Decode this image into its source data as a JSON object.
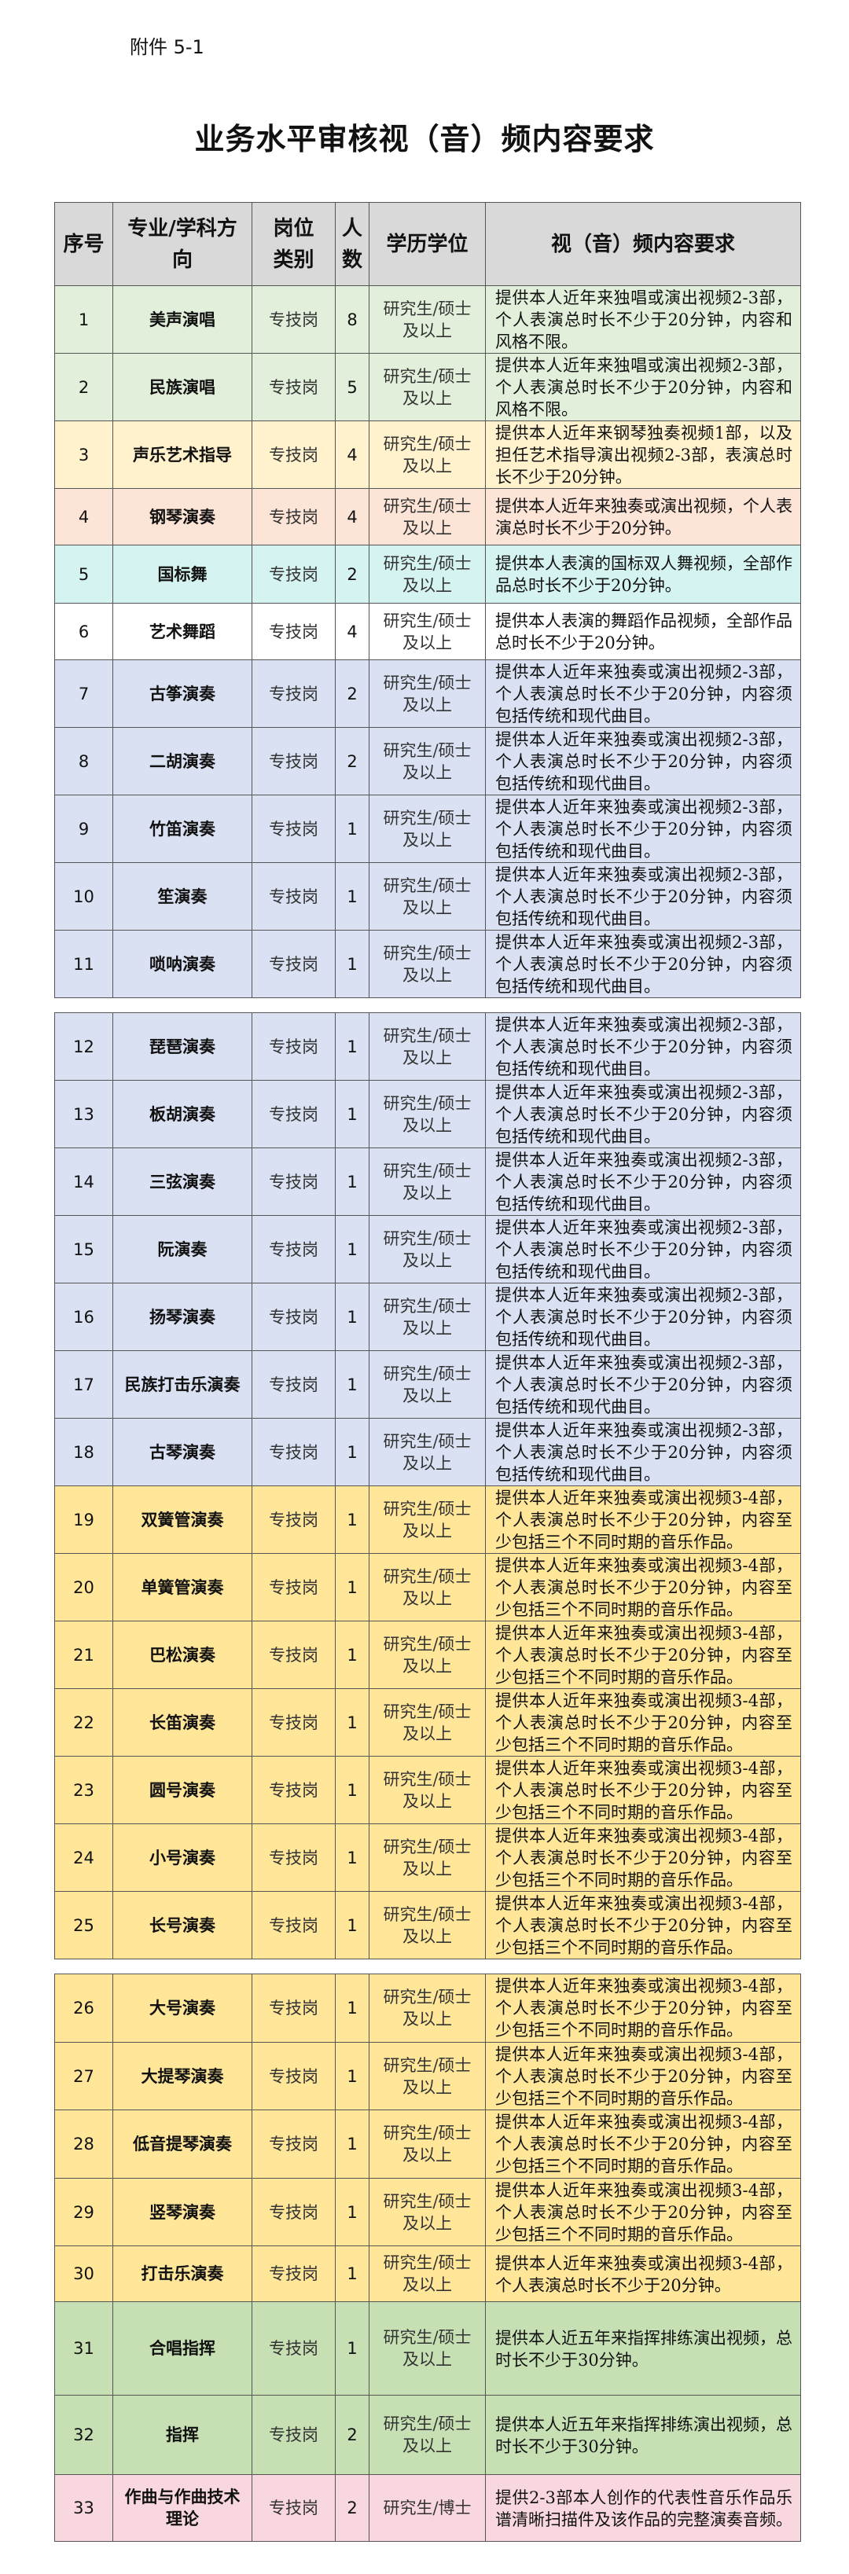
{
  "attachment_label": "附件 5-1",
  "title": "业务水平审核视（音）频内容要求",
  "colors": {
    "header": "#d9d9d9",
    "vocal_green": "#e2efda",
    "accompany_yellow": "#fff2cc",
    "piano_peach": "#fce4d6",
    "dance_cyan": "#d4f3f1",
    "white": "#ffffff",
    "folk_blue": "#d9e1f2",
    "western_gold": "#ffe699",
    "conduct_green": "#c6e0b4",
    "composition_pink": "#f8d7de"
  },
  "table": {
    "headers": [
      "序号",
      "专业/学科方向",
      "岗位类别",
      "人数",
      "学历学位",
      "视（音）频内容要求"
    ],
    "rows": [
      {
        "no": "1",
        "major": "美声演唱",
        "category": "专技岗",
        "count": "8",
        "degree": "研究生/硕士及以上",
        "content": "提供本人近年来独唱或演出视频2-3部，个人表演总时长不少于20分钟，内容和风格不限。",
        "color": "#e2efda"
      },
      {
        "no": "2",
        "major": "民族演唱",
        "category": "专技岗",
        "count": "5",
        "degree": "研究生/硕士及以上",
        "content": "提供本人近年来独唱或演出视频2-3部，个人表演总时长不少于20分钟，内容和风格不限。",
        "color": "#e2efda"
      },
      {
        "no": "3",
        "major": "声乐艺术指导",
        "category": "专技岗",
        "count": "4",
        "degree": "研究生/硕士及以上",
        "content": "提供本人近年来钢琴独奏视频1部，以及担任艺术指导演出视频2-3部，表演总时长不少于20分钟。",
        "color": "#fff2cc"
      },
      {
        "no": "4",
        "major": "钢琴演奏",
        "category": "专技岗",
        "count": "4",
        "degree": "研究生/硕士及以上",
        "content": "提供本人近年来独奏或演出视频，个人表演总时长不少于20分钟。",
        "color": "#fce4d6"
      },
      {
        "no": "5",
        "major": "国标舞",
        "category": "专技岗",
        "count": "2",
        "degree": "研究生/硕士及以上",
        "content": "提供本人表演的国标双人舞视频，全部作品总时长不少于20分钟。",
        "color": "#d4f3f1"
      },
      {
        "no": "6",
        "major": "艺术舞蹈",
        "category": "专技岗",
        "count": "4",
        "degree": "研究生/硕士及以上",
        "content": "提供本人表演的舞蹈作品视频，全部作品总时长不少于20分钟。",
        "color": "#ffffff"
      },
      {
        "no": "7",
        "major": "古筝演奏",
        "category": "专技岗",
        "count": "2",
        "degree": "研究生/硕士及以上",
        "content": "提供本人近年来独奏或演出视频2-3部，个人表演总时长不少于20分钟，内容须包括传统和现代曲目。",
        "color": "#d9e1f2"
      },
      {
        "no": "8",
        "major": "二胡演奏",
        "category": "专技岗",
        "count": "2",
        "degree": "研究生/硕士及以上",
        "content": "提供本人近年来独奏或演出视频2-3部，个人表演总时长不少于20分钟，内容须包括传统和现代曲目。",
        "color": "#d9e1f2"
      },
      {
        "no": "9",
        "major": "竹笛演奏",
        "category": "专技岗",
        "count": "1",
        "degree": "研究生/硕士及以上",
        "content": "提供本人近年来独奏或演出视频2-3部，个人表演总时长不少于20分钟，内容须包括传统和现代曲目。",
        "color": "#d9e1f2"
      },
      {
        "no": "10",
        "major": "笙演奏",
        "category": "专技岗",
        "count": "1",
        "degree": "研究生/硕士及以上",
        "content": "提供本人近年来独奏或演出视频2-3部，个人表演总时长不少于20分钟，内容须包括传统和现代曲目。",
        "color": "#d9e1f2"
      },
      {
        "no": "11",
        "major": "唢呐演奏",
        "category": "专技岗",
        "count": "1",
        "degree": "研究生/硕士及以上",
        "content": "提供本人近年来独奏或演出视频2-3部，个人表演总时长不少于20分钟，内容须包括传统和现代曲目。",
        "color": "#d9e1f2"
      },
      {
        "no": "12",
        "major": "琵琶演奏",
        "category": "专技岗",
        "count": "1",
        "degree": "研究生/硕士及以上",
        "content": "提供本人近年来独奏或演出视频2-3部，个人表演总时长不少于20分钟，内容须包括传统和现代曲目。",
        "color": "#d9e1f2"
      },
      {
        "no": "13",
        "major": "板胡演奏",
        "category": "专技岗",
        "count": "1",
        "degree": "研究生/硕士及以上",
        "content": "提供本人近年来独奏或演出视频2-3部，个人表演总时长不少于20分钟，内容须包括传统和现代曲目。",
        "color": "#d9e1f2"
      },
      {
        "no": "14",
        "major": "三弦演奏",
        "category": "专技岗",
        "count": "1",
        "degree": "研究生/硕士及以上",
        "content": "提供本人近年来独奏或演出视频2-3部，个人表演总时长不少于20分钟，内容须包括传统和现代曲目。",
        "color": "#d9e1f2"
      },
      {
        "no": "15",
        "major": "阮演奏",
        "category": "专技岗",
        "count": "1",
        "degree": "研究生/硕士及以上",
        "content": "提供本人近年来独奏或演出视频2-3部，个人表演总时长不少于20分钟，内容须包括传统和现代曲目。",
        "color": "#d9e1f2"
      },
      {
        "no": "16",
        "major": "扬琴演奏",
        "category": "专技岗",
        "count": "1",
        "degree": "研究生/硕士及以上",
        "content": "提供本人近年来独奏或演出视频2-3部，个人表演总时长不少于20分钟，内容须包括传统和现代曲目。",
        "color": "#d9e1f2"
      },
      {
        "no": "17",
        "major": "民族打击乐演奏",
        "category": "专技岗",
        "count": "1",
        "degree": "研究生/硕士及以上",
        "content": "提供本人近年来独奏或演出视频2-3部，个人表演总时长不少于20分钟，内容须包括传统和现代曲目。",
        "color": "#d9e1f2"
      },
      {
        "no": "18",
        "major": "古琴演奏",
        "category": "专技岗",
        "count": "1",
        "degree": "研究生/硕士及以上",
        "content": "提供本人近年来独奏或演出视频2-3部，个人表演总时长不少于20分钟，内容须包括传统和现代曲目。",
        "color": "#d9e1f2"
      },
      {
        "no": "19",
        "major": "双簧管演奏",
        "category": "专技岗",
        "count": "1",
        "degree": "研究生/硕士及以上",
        "content": "提供本人近年来独奏或演出视频3-4部，个人表演总时长不少于20分钟，内容至少包括三个不同时期的音乐作品。",
        "color": "#ffe699"
      },
      {
        "no": "20",
        "major": "单簧管演奏",
        "category": "专技岗",
        "count": "1",
        "degree": "研究生/硕士及以上",
        "content": "提供本人近年来独奏或演出视频3-4部，个人表演总时长不少于20分钟，内容至少包括三个不同时期的音乐作品。",
        "color": "#ffe699"
      },
      {
        "no": "21",
        "major": "巴松演奏",
        "category": "专技岗",
        "count": "1",
        "degree": "研究生/硕士及以上",
        "content": "提供本人近年来独奏或演出视频3-4部，个人表演总时长不少于20分钟，内容至少包括三个不同时期的音乐作品。",
        "color": "#ffe699"
      },
      {
        "no": "22",
        "major": "长笛演奏",
        "category": "专技岗",
        "count": "1",
        "degree": "研究生/硕士及以上",
        "content": "提供本人近年来独奏或演出视频3-4部，个人表演总时长不少于20分钟，内容至少包括三个不同时期的音乐作品。",
        "color": "#ffe699"
      },
      {
        "no": "23",
        "major": "圆号演奏",
        "category": "专技岗",
        "count": "1",
        "degree": "研究生/硕士及以上",
        "content": "提供本人近年来独奏或演出视频3-4部，个人表演总时长不少于20分钟，内容至少包括三个不同时期的音乐作品。",
        "color": "#ffe699"
      },
      {
        "no": "24",
        "major": "小号演奏",
        "category": "专技岗",
        "count": "1",
        "degree": "研究生/硕士及以上",
        "content": "提供本人近年来独奏或演出视频3-4部，个人表演总时长不少于20分钟，内容至少包括三个不同时期的音乐作品。",
        "color": "#ffe699"
      },
      {
        "no": "25",
        "major": "长号演奏",
        "category": "专技岗",
        "count": "1",
        "degree": "研究生/硕士及以上",
        "content": "提供本人近年来独奏或演出视频3-4部，个人表演总时长不少于20分钟，内容至少包括三个不同时期的音乐作品。",
        "color": "#ffe699"
      },
      {
        "no": "26",
        "major": "大号演奏",
        "category": "专技岗",
        "count": "1",
        "degree": "研究生/硕士及以上",
        "content": "提供本人近年来独奏或演出视频3-4部，个人表演总时长不少于20分钟，内容至少包括三个不同时期的音乐作品。",
        "color": "#ffe699"
      },
      {
        "no": "27",
        "major": "大提琴演奏",
        "category": "专技岗",
        "count": "1",
        "degree": "研究生/硕士及以上",
        "content": "提供本人近年来独奏或演出视频3-4部，个人表演总时长不少于20分钟，内容至少包括三个不同时期的音乐作品。",
        "color": "#ffe699"
      },
      {
        "no": "28",
        "major": "低音提琴演奏",
        "category": "专技岗",
        "count": "1",
        "degree": "研究生/硕士及以上",
        "content": "提供本人近年来独奏或演出视频3-4部，个人表演总时长不少于20分钟，内容至少包括三个不同时期的音乐作品。",
        "color": "#ffe699"
      },
      {
        "no": "29",
        "major": "竖琴演奏",
        "category": "专技岗",
        "count": "1",
        "degree": "研究生/硕士及以上",
        "content": "提供本人近年来独奏或演出视频3-4部，个人表演总时长不少于20分钟，内容至少包括三个不同时期的音乐作品。",
        "color": "#ffe699"
      },
      {
        "no": "30",
        "major": "打击乐演奏",
        "category": "专技岗",
        "count": "1",
        "degree": "研究生/硕士及以上",
        "content": "提供本人近年来独奏或演出视频3-4部，个人表演总时长不少于20分钟。",
        "color": "#ffe699"
      },
      {
        "no": "31",
        "major": "合唱指挥",
        "category": "专技岗",
        "count": "1",
        "degree": "研究生/硕士及以上",
        "content": "提供本人近五年来指挥排练演出视频，总时长不少于30分钟。",
        "color": "#c6e0b4"
      },
      {
        "no": "32",
        "major": "指挥",
        "category": "专技岗",
        "count": "2",
        "degree": "研究生/硕士及以上",
        "content": "提供本人近五年来指挥排练演出视频，总时长不少于30分钟。",
        "color": "#c6e0b4"
      },
      {
        "no": "33",
        "major": "作曲与作曲技术理论",
        "category": "专技岗",
        "count": "2",
        "degree": "研究生/博士",
        "content": "提供2-3部本人创作的代表性音乐作品乐谱清晰扫描件及该作品的完整演奏音频。",
        "color": "#f8d7de"
      }
    ]
  }
}
